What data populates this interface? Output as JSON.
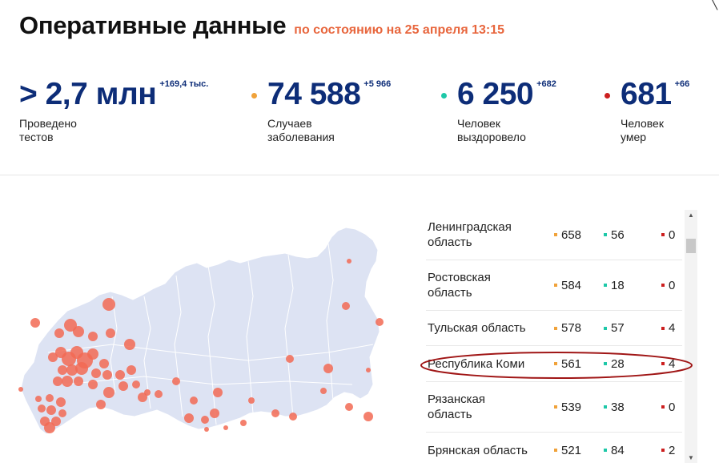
{
  "header": {
    "title": "Оперативные данные",
    "subtitle": "по состоянию на 25 апреля 13:15"
  },
  "stats": [
    {
      "value": "> 2,7 млн",
      "delta": "+169,4 тыс.",
      "label1": "Проведено",
      "label2": "тестов"
    },
    {
      "value": "74 588",
      "delta": "+5 966",
      "label1": "Случаев",
      "label2": "заболевания",
      "dot_color": "#f0a23a"
    },
    {
      "value": "6 250",
      "delta": "+682",
      "label1": "Человек",
      "label2": "выздоровело",
      "dot_color": "#1ec8a8"
    },
    {
      "value": "681",
      "delta": "+66",
      "label1": "Человек",
      "label2": "умер",
      "dot_color": "#cc1f1f"
    }
  ],
  "regions": [
    {
      "name1": "Ленинградская",
      "name2": "область",
      "cases": "658",
      "recovered": "56",
      "deaths": "0"
    },
    {
      "name1": "Ростовская",
      "name2": "область",
      "cases": "584",
      "recovered": "18",
      "deaths": "0"
    },
    {
      "name1": "Тульская область",
      "name2": "",
      "cases": "578",
      "recovered": "57",
      "deaths": "4"
    },
    {
      "name1": "Республика Коми",
      "name2": "",
      "cases": "561",
      "recovered": "28",
      "deaths": "4"
    },
    {
      "name1": "Рязанская",
      "name2": "область",
      "cases": "539",
      "recovered": "38",
      "deaths": "0"
    },
    {
      "name1": "Брянская область",
      "name2": "",
      "cases": "521",
      "recovered": "84",
      "deaths": "2"
    }
  ],
  "colors": {
    "accent_navy": "#0d2d78",
    "subtitle_orange": "#e8663d",
    "cases": "#f0a23a",
    "recovered": "#1ec8a8",
    "deaths": "#cc1f1f",
    "map_fill": "#dde3f3",
    "bubble": "#f26a54",
    "highlight_ellipse": "#a01616"
  },
  "icons": {
    "close": "close-icon",
    "scroll_up": "scroll-up-arrow-icon",
    "scroll_down": "scroll-down-arrow-icon"
  }
}
